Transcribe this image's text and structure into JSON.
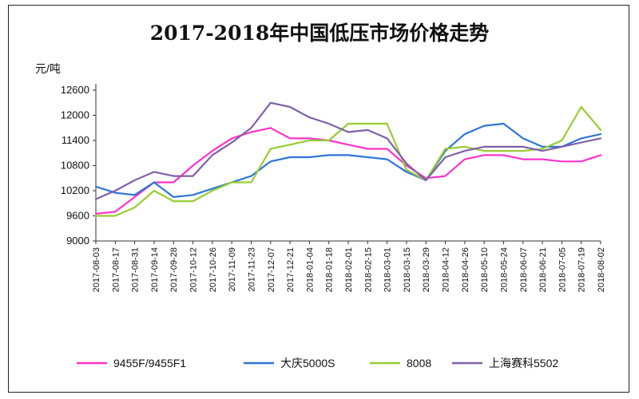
{
  "chart_data": {
    "type": "line",
    "title": "2017-2018年中国低压市场价格走势",
    "unit_label": "元/吨",
    "ylim": [
      9000,
      12600
    ],
    "yticks": [
      9000,
      9600,
      10200,
      10800,
      11400,
      12000,
      12600
    ],
    "categories": [
      "2017-08-03",
      "2017-08-17",
      "2017-08-31",
      "2017-09-14",
      "2017-09-28",
      "2017-10-12",
      "2017-10-26",
      "2017-11-09",
      "2017-11-23",
      "2017-12-07",
      "2017-12-21",
      "2018-01-04",
      "2018-01-18",
      "2018-02-01",
      "2018-02-15",
      "2018-03-01",
      "2018-03-15",
      "2018-03-29",
      "2018-04-12",
      "2018-04-26",
      "2018-05-10",
      "2018-05-24",
      "2018-06-07",
      "2018-06-21",
      "2018-07-05",
      "2018-07-19",
      "2018-08-02"
    ],
    "legend_position": "bottom",
    "series": [
      {
        "name": "9455F/9455F1",
        "color": "#ff33cc",
        "values": [
          9650,
          9700,
          10050,
          10400,
          10400,
          10800,
          11150,
          11450,
          11600,
          11700,
          11450,
          11450,
          11400,
          11300,
          11200,
          11200,
          10800,
          10500,
          10550,
          10950,
          11050,
          11050,
          10950,
          10950,
          10900,
          10900,
          11050
        ]
      },
      {
        "name": "大庆5000S",
        "color": "#2e75d6",
        "values": [
          10300,
          10150,
          10100,
          10400,
          10050,
          10100,
          10250,
          10400,
          10550,
          10900,
          11000,
          11000,
          11050,
          11050,
          11000,
          10950,
          10650,
          10450,
          11150,
          11550,
          11750,
          11800,
          11450,
          11250,
          11250,
          11450,
          11550
        ]
      },
      {
        "name": "8008",
        "color": "#99cc33",
        "values": [
          9600,
          9600,
          9800,
          10200,
          9950,
          9950,
          10200,
          10400,
          10400,
          11200,
          11300,
          11400,
          11400,
          11800,
          11800,
          11800,
          10700,
          10450,
          11200,
          11250,
          11150,
          11150,
          11150,
          11200,
          11400,
          12200,
          11650
        ]
      },
      {
        "name": "上海赛科5502",
        "color": "#8060a8",
        "values": [
          10000,
          10200,
          10450,
          10650,
          10550,
          10550,
          11050,
          11350,
          11700,
          12300,
          12200,
          11950,
          11800,
          11600,
          11650,
          11450,
          10850,
          10450,
          11000,
          11150,
          11250,
          11250,
          11250,
          11150,
          11250,
          11350,
          11450
        ]
      }
    ]
  }
}
